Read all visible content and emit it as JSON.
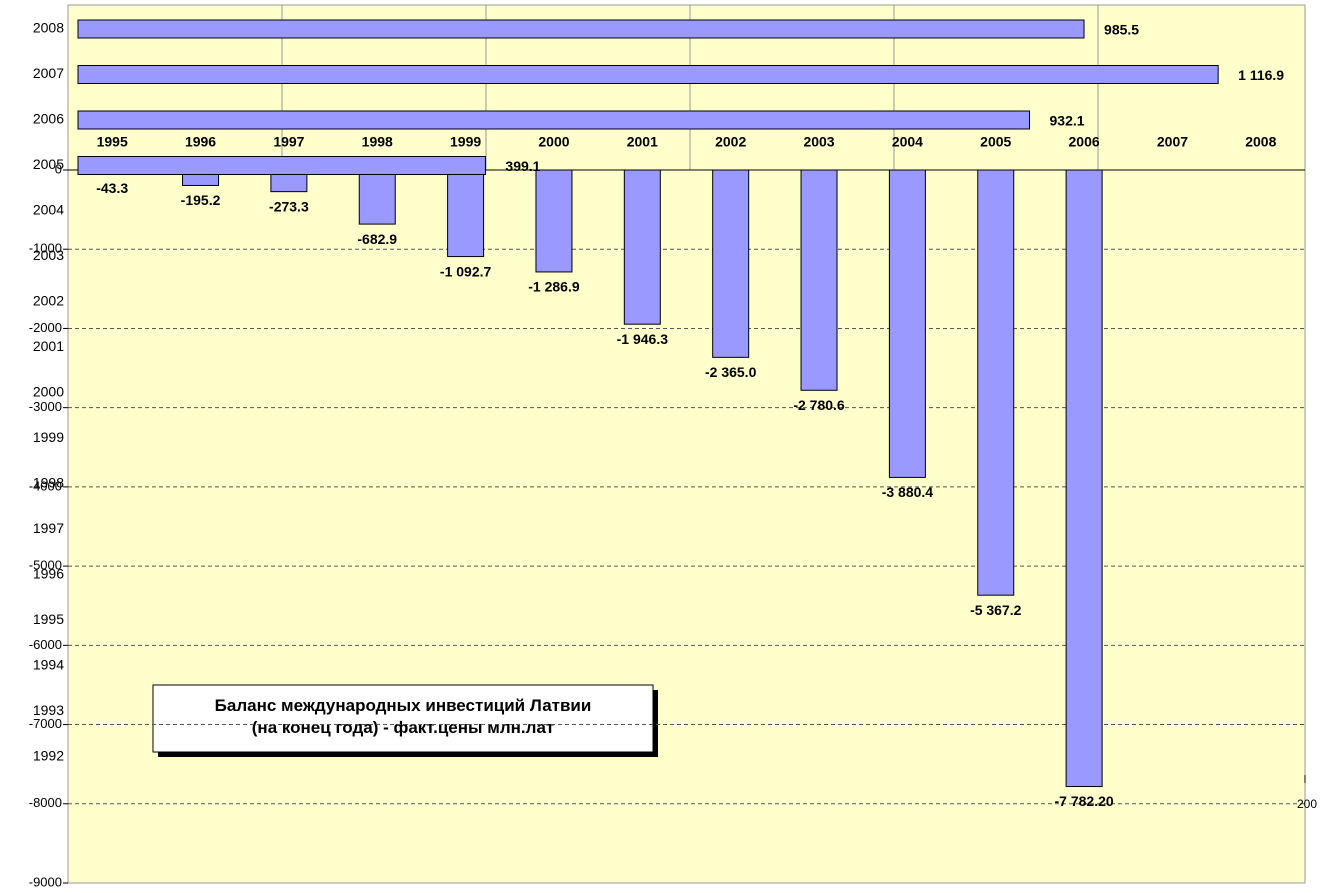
{
  "chart_data": [
    {
      "type": "bar",
      "categories": [
        "1995",
        "1996",
        "1997",
        "1998",
        "1999",
        "2000",
        "2001",
        "2002",
        "2003",
        "2004",
        "2005",
        "2006",
        "2007",
        "2008"
      ],
      "values": [
        -43.3,
        -195.2,
        -273.3,
        -682.9,
        -1092.7,
        -1286.9,
        -1946.3,
        -2365.0,
        -2780.6,
        -3880.4,
        -5367.2,
        -7782.2,
        null,
        null
      ],
      "value_labels": [
        "-43.3",
        "-195.2",
        "-273.3",
        "-682.9",
        "-1 092.7",
        "-1 286.9",
        "-1 946.3",
        "-2 365.0",
        "-2 780.6",
        "-3 880.4",
        "-5 367.2",
        "-7 782.20",
        null,
        null
      ],
      "color": "#9999ff",
      "ylim": [
        -9000,
        0
      ],
      "yticks": [
        0,
        -1000,
        -2000,
        -3000,
        -4000,
        -5000,
        -6000,
        -7000,
        -8000,
        -9000
      ],
      "grid": true
    },
    {
      "type": "hbar",
      "title": "Баланс международных инвестиций Латвии\n(на конец года) - факт.цены  млн.лат",
      "categories": [
        "1992",
        "1993",
        "1994",
        "1995",
        "1996",
        "1997",
        "1998",
        "1999",
        "2000",
        "2001",
        "2002",
        "2003",
        "2004",
        "2005",
        "2006",
        "2007",
        "2008"
      ],
      "values": [
        null,
        null,
        null,
        null,
        null,
        null,
        null,
        null,
        null,
        null,
        null,
        null,
        null,
        399.1,
        932.1,
        1116.9,
        985.5
      ],
      "value_labels": [
        null,
        null,
        null,
        null,
        null,
        null,
        null,
        null,
        null,
        null,
        null,
        null,
        null,
        "399.1",
        "932.1",
        "1 116.9",
        "985.5"
      ],
      "color": "#9999ff",
      "xlim": [
        0,
        1200
      ],
      "annotations": [
        "200"
      ]
    }
  ]
}
